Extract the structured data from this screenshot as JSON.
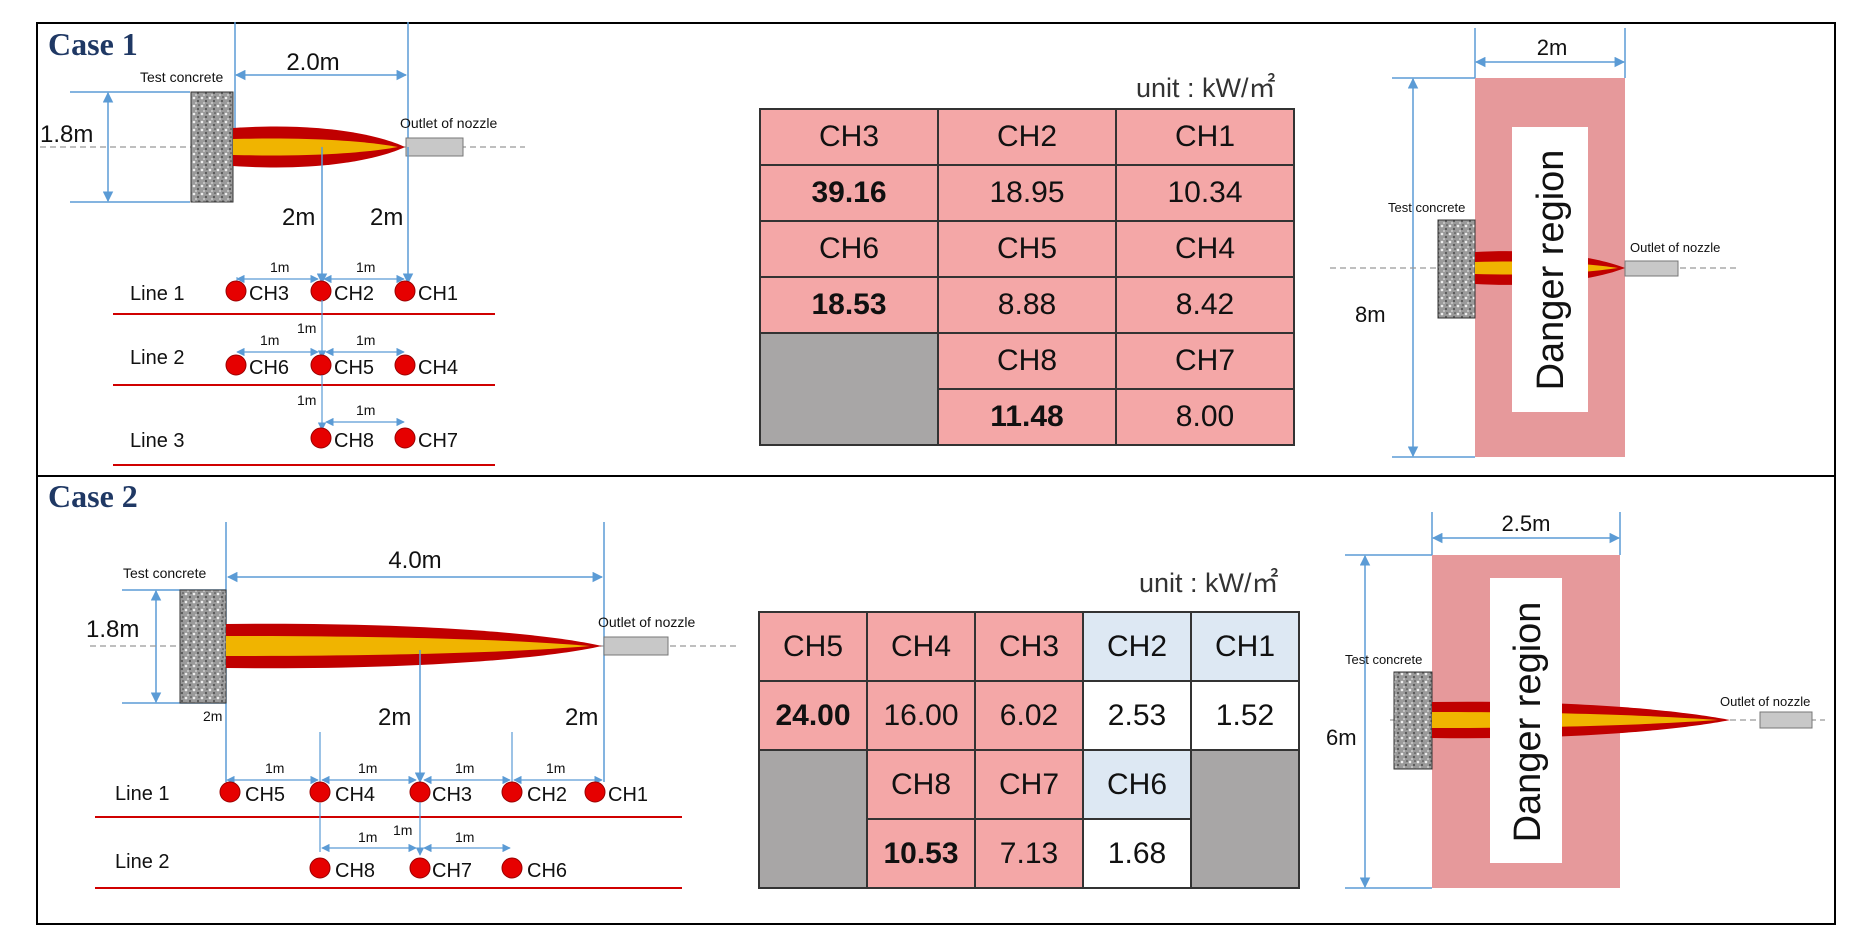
{
  "case1": {
    "title": "Case 1",
    "unit": "unit : kW/㎡",
    "dims": {
      "horizontal": "2.0m",
      "height": "1.8m",
      "gap_left": "2m",
      "gap_right": "2m"
    },
    "labels": {
      "concrete": "Test concrete",
      "nozzle": "Outlet of nozzle"
    },
    "spacing": "1m",
    "lines": [
      "Line 1",
      "Line 2",
      "Line 3"
    ],
    "channels": [
      "CH1",
      "CH2",
      "CH3",
      "CH4",
      "CH5",
      "CH6",
      "CH7",
      "CH8"
    ],
    "table": {
      "rows": [
        [
          "CH3",
          "CH2",
          "CH1"
        ],
        [
          "39.16",
          "18.95",
          "10.34"
        ],
        [
          "CH6",
          "CH5",
          "CH4"
        ],
        [
          "18.53",
          "8.88",
          "8.42"
        ],
        [
          "",
          "CH8",
          "CH7"
        ],
        [
          "",
          "11.48",
          "8.00"
        ]
      ]
    },
    "danger": {
      "width": "2m",
      "height": "8m",
      "label": "Danger region",
      "concrete": "Test concrete",
      "nozzle": "Outlet of nozzle"
    }
  },
  "case2": {
    "title": "Case 2",
    "unit": "unit : kW/㎡",
    "dims": {
      "horizontal": "4.0m",
      "height": "1.8m",
      "small": "2m",
      "gap_left": "2m",
      "gap_right": "2m"
    },
    "labels": {
      "concrete": "Test concrete",
      "nozzle": "Outlet of nozzle"
    },
    "spacing": "1m",
    "lines": [
      "Line 1",
      "Line 2"
    ],
    "channels": [
      "CH1",
      "CH2",
      "CH3",
      "CH4",
      "CH5",
      "CH6",
      "CH7",
      "CH8"
    ],
    "table": {
      "rows": [
        [
          "CH5",
          "CH4",
          "CH3",
          "CH2",
          "CH1"
        ],
        [
          "24.00",
          "16.00",
          "6.02",
          "2.53",
          "1.52"
        ],
        [
          "",
          "CH8",
          "CH7",
          "CH6",
          ""
        ],
        [
          "",
          "10.53",
          "7.13",
          "1.68",
          ""
        ]
      ]
    },
    "danger": {
      "width": "2.5m",
      "height": "6m",
      "label": "Danger region",
      "concrete": "Test concrete",
      "nozzle": "Outlet of nozzle"
    }
  },
  "colors": {
    "flame_outer": "#c00000",
    "flame_inner": "#f0b400",
    "dim_line": "#5b9bd5",
    "danger_fill": "#e6999b",
    "sensor": "#e60000",
    "line_red": "#d00000"
  }
}
